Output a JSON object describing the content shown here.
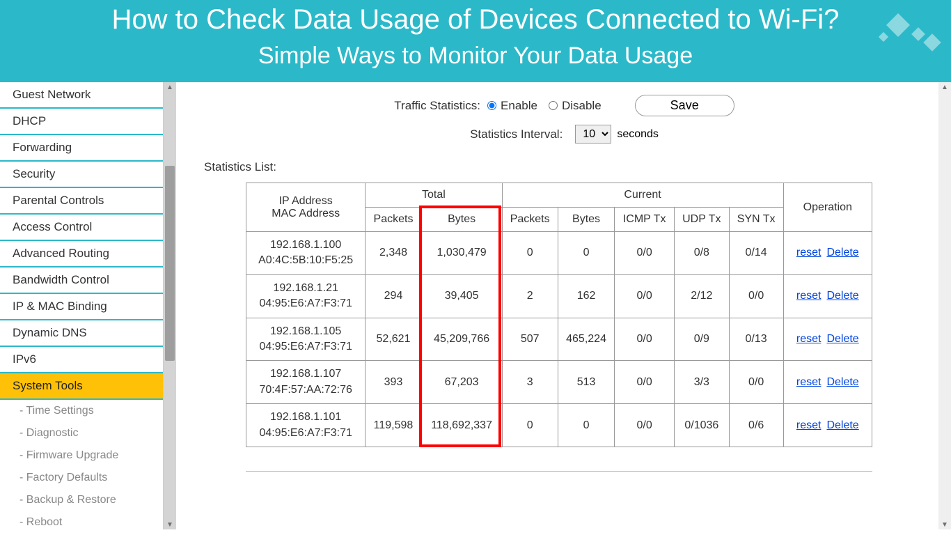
{
  "header": {
    "title": "How to Check Data Usage of Devices Connected to Wi-Fi?",
    "subtitle": "Simple Ways to Monitor Your Data Usage"
  },
  "sidebar": {
    "items": [
      "Guest Network",
      "DHCP",
      "Forwarding",
      "Security",
      "Parental Controls",
      "Access Control",
      "Advanced Routing",
      "Bandwidth Control",
      "IP & MAC Binding",
      "Dynamic DNS",
      "IPv6",
      "System Tools"
    ],
    "active_index": 11,
    "subitems": [
      "- Time Settings",
      "- Diagnostic",
      "- Firmware Upgrade",
      "- Factory Defaults",
      "- Backup & Restore",
      "- Reboot"
    ]
  },
  "form": {
    "traffic_label": "Traffic Statistics:",
    "enable_label": "Enable",
    "disable_label": "Disable",
    "selected": "enable",
    "save_label": "Save",
    "interval_label": "Statistics Interval:",
    "interval_value": "10",
    "interval_unit": "seconds"
  },
  "stats_list_label": "Statistics List:",
  "table": {
    "header_groups": {
      "total": "Total",
      "current": "Current",
      "operation": "Operation"
    },
    "columns": {
      "addr": "IP Address\nMAC Address",
      "total_packets": "Packets",
      "total_bytes": "Bytes",
      "cur_packets": "Packets",
      "cur_bytes": "Bytes",
      "icmp": "ICMP Tx",
      "udp": "UDP Tx",
      "syn": "SYN Tx"
    },
    "rows": [
      {
        "ip": "192.168.1.100",
        "mac": "A0:4C:5B:10:F5:25",
        "tp": "2,348",
        "tb": "1,030,479",
        "cp": "0",
        "cb": "0",
        "icmp": "0/0",
        "udp": "0/8",
        "syn": "0/14"
      },
      {
        "ip": "192.168.1.21",
        "mac": "04:95:E6:A7:F3:71",
        "tp": "294",
        "tb": "39,405",
        "cp": "2",
        "cb": "162",
        "icmp": "0/0",
        "udp": "2/12",
        "syn": "0/0"
      },
      {
        "ip": "192.168.1.105",
        "mac": "04:95:E6:A7:F3:71",
        "tp": "52,621",
        "tb": "45,209,766",
        "cp": "507",
        "cb": "465,224",
        "icmp": "0/0",
        "udp": "0/9",
        "syn": "0/13"
      },
      {
        "ip": "192.168.1.107",
        "mac": "70:4F:57:AA:72:76",
        "tp": "393",
        "tb": "67,203",
        "cp": "3",
        "cb": "513",
        "icmp": "0/0",
        "udp": "3/3",
        "syn": "0/0"
      },
      {
        "ip": "192.168.1.101",
        "mac": "04:95:E6:A7:F3:71",
        "tp": "119,598",
        "tb": "118,692,337",
        "cp": "0",
        "cb": "0",
        "icmp": "0/0",
        "udp": "0/1036",
        "syn": "0/6"
      }
    ],
    "op_reset": "reset",
    "op_delete": "Delete"
  },
  "highlight": {
    "color": "#ff0000",
    "target_column": "total_bytes"
  },
  "colors": {
    "banner_bg": "#2bb9c9",
    "sidebar_active_bg": "#ffc107",
    "sidebar_divider": "#2bb9c9",
    "link": "#0044dd",
    "scroll_track": "#d4d4d4",
    "scroll_thumb": "#9e9e9e"
  }
}
